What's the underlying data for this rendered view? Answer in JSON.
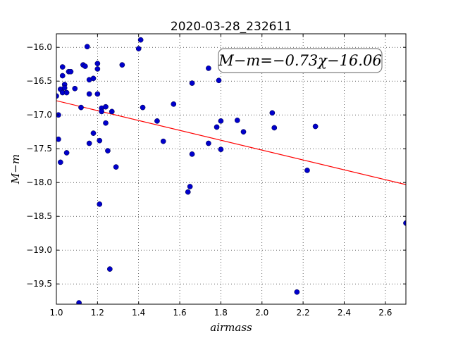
{
  "chart_data": {
    "type": "scatter",
    "title": "2020-03-28_232611",
    "xlabel": "airmass",
    "ylabel": "M−m",
    "xlim": [
      1.0,
      2.7
    ],
    "ylim": [
      -19.8,
      -15.8
    ],
    "xticks": [
      1.0,
      1.2,
      1.4,
      1.6,
      1.8,
      2.0,
      2.2,
      2.4,
      2.6
    ],
    "xtick_labels": [
      "1.0",
      "1.2",
      "1.4",
      "1.6",
      "1.8",
      "2.0",
      "2.2",
      "2.4",
      "2.6"
    ],
    "yticks": [
      -16.0,
      -16.5,
      -17.0,
      -17.5,
      -18.0,
      -18.5,
      -19.0,
      -19.5
    ],
    "ytick_labels": [
      "−16.0",
      "−16.5",
      "−17.0",
      "−17.5",
      "−18.0",
      "−18.5",
      "−19.0",
      "−19.5"
    ],
    "grid": true,
    "point_color": "#0000cc",
    "fit_color": "#ff0000",
    "fit": {
      "slope": -0.73,
      "intercept": -16.06
    },
    "annotation": "M−m=−0.73χ−16.06",
    "points": [
      {
        "x": 1.0,
        "y": -16.72
      },
      {
        "x": 1.01,
        "y": -17.0
      },
      {
        "x": 1.01,
        "y": -17.36
      },
      {
        "x": 1.02,
        "y": -17.7
      },
      {
        "x": 1.02,
        "y": -16.62
      },
      {
        "x": 1.03,
        "y": -16.29
      },
      {
        "x": 1.03,
        "y": -16.42
      },
      {
        "x": 1.03,
        "y": -16.67
      },
      {
        "x": 1.04,
        "y": -16.55
      },
      {
        "x": 1.04,
        "y": -16.6
      },
      {
        "x": 1.05,
        "y": -16.67
      },
      {
        "x": 1.05,
        "y": -17.56
      },
      {
        "x": 1.06,
        "y": -16.36
      },
      {
        "x": 1.07,
        "y": -16.36
      },
      {
        "x": 1.09,
        "y": -16.61
      },
      {
        "x": 1.11,
        "y": -19.78
      },
      {
        "x": 1.12,
        "y": -16.89
      },
      {
        "x": 1.13,
        "y": -16.26
      },
      {
        "x": 1.14,
        "y": -16.28
      },
      {
        "x": 1.15,
        "y": -15.99
      },
      {
        "x": 1.16,
        "y": -16.48
      },
      {
        "x": 1.16,
        "y": -16.69
      },
      {
        "x": 1.16,
        "y": -17.42
      },
      {
        "x": 1.18,
        "y": -17.27
      },
      {
        "x": 1.18,
        "y": -16.46
      },
      {
        "x": 1.2,
        "y": -16.32
      },
      {
        "x": 1.2,
        "y": -16.24
      },
      {
        "x": 1.2,
        "y": -16.69
      },
      {
        "x": 1.21,
        "y": -17.38
      },
      {
        "x": 1.21,
        "y": -18.32
      },
      {
        "x": 1.22,
        "y": -16.9
      },
      {
        "x": 1.22,
        "y": -16.95
      },
      {
        "x": 1.24,
        "y": -17.12
      },
      {
        "x": 1.24,
        "y": -16.88
      },
      {
        "x": 1.25,
        "y": -17.53
      },
      {
        "x": 1.26,
        "y": -19.28
      },
      {
        "x": 1.27,
        "y": -16.95
      },
      {
        "x": 1.29,
        "y": -17.77
      },
      {
        "x": 1.32,
        "y": -16.26
      },
      {
        "x": 1.4,
        "y": -16.02
      },
      {
        "x": 1.41,
        "y": -15.89
      },
      {
        "x": 1.42,
        "y": -16.89
      },
      {
        "x": 1.49,
        "y": -17.09
      },
      {
        "x": 1.52,
        "y": -17.39
      },
      {
        "x": 1.57,
        "y": -16.84
      },
      {
        "x": 1.64,
        "y": -18.14
      },
      {
        "x": 1.65,
        "y": -18.06
      },
      {
        "x": 1.66,
        "y": -16.53
      },
      {
        "x": 1.66,
        "y": -17.58
      },
      {
        "x": 1.74,
        "y": -16.31
      },
      {
        "x": 1.74,
        "y": -17.42
      },
      {
        "x": 1.78,
        "y": -17.18
      },
      {
        "x": 1.79,
        "y": -16.49
      },
      {
        "x": 1.8,
        "y": -17.09
      },
      {
        "x": 1.8,
        "y": -17.51
      },
      {
        "x": 1.88,
        "y": -17.08
      },
      {
        "x": 1.91,
        "y": -17.25
      },
      {
        "x": 2.05,
        "y": -16.97
      },
      {
        "x": 2.06,
        "y": -17.19
      },
      {
        "x": 2.17,
        "y": -19.62
      },
      {
        "x": 2.22,
        "y": -17.82
      },
      {
        "x": 2.26,
        "y": -17.17
      },
      {
        "x": 2.7,
        "y": -18.6
      }
    ]
  }
}
